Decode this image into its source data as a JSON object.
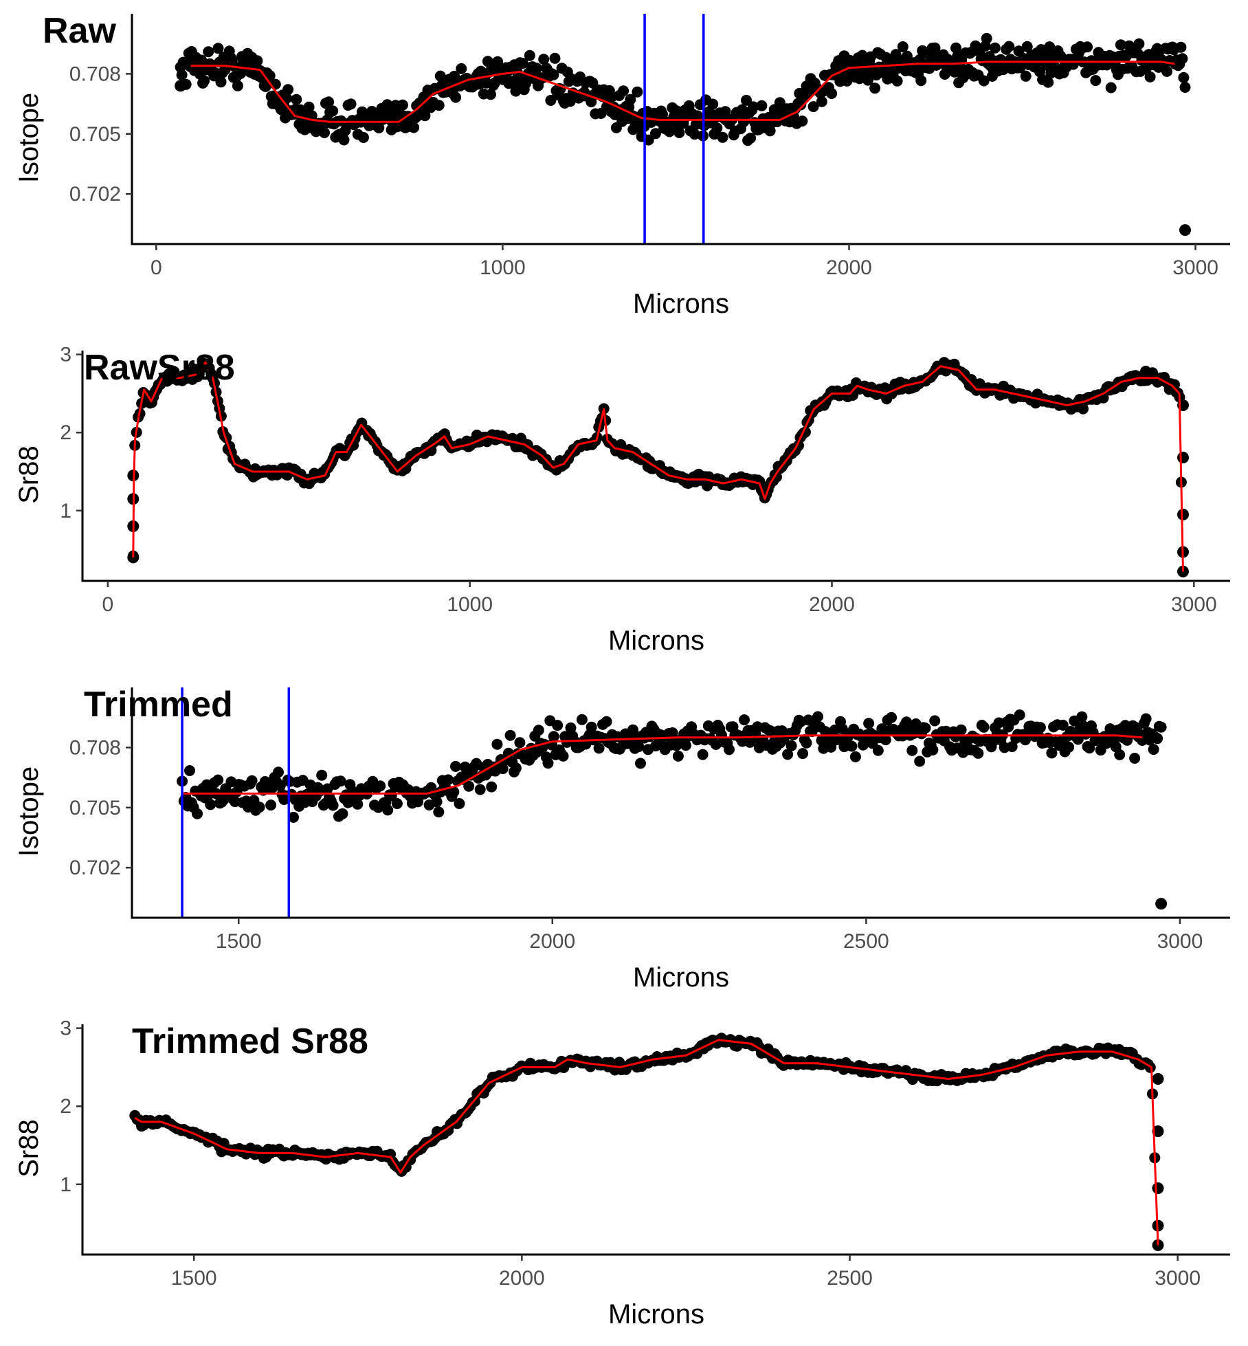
{
  "figure": {
    "background": "#ffffff",
    "point_color": "#000000",
    "fit_color": "#ff0000",
    "marker_color": "#0000ff"
  },
  "chart_data": [
    {
      "type": "scatter",
      "title": "Raw",
      "xlabel": "Microns",
      "ylabel": "Isotope",
      "xlim": [
        -70,
        3100
      ],
      "ylim": [
        0.6995,
        0.711
      ],
      "xticks": [
        0,
        1000,
        2000,
        3000
      ],
      "xtick_labels": [
        "0",
        "1000",
        "2000",
        "3000"
      ],
      "yticks": [
        0.702,
        0.705,
        0.708
      ],
      "ytick_labels": [
        "0.702",
        "0.705",
        "0.708"
      ],
      "grid": false,
      "legend": "none",
      "vlines": [
        1410,
        1580
      ],
      "noise_sd": 0.00045,
      "extra_points": [
        [
          70,
          0.7074
        ],
        [
          2970,
          0.7002
        ]
      ],
      "x_range": [
        70,
        2970
      ],
      "n_points": 720,
      "series": [
        {
          "kind": "loess fit",
          "x": [
            100,
            200,
            300,
            350,
            400,
            450,
            500,
            600,
            700,
            750,
            800,
            900,
            1000,
            1050,
            1100,
            1200,
            1300,
            1400,
            1450,
            1500,
            1600,
            1700,
            1800,
            1850,
            1900,
            1950,
            2000,
            2100,
            2200,
            2300,
            2400,
            2500,
            2600,
            2700,
            2800,
            2900,
            2940
          ],
          "y": [
            0.7084,
            0.7084,
            0.7082,
            0.707,
            0.7059,
            0.7057,
            0.7056,
            0.7056,
            0.7056,
            0.7062,
            0.707,
            0.7077,
            0.708,
            0.7081,
            0.7078,
            0.7072,
            0.7066,
            0.7058,
            0.7057,
            0.7057,
            0.7057,
            0.7057,
            0.7057,
            0.7061,
            0.707,
            0.7079,
            0.7083,
            0.7084,
            0.7085,
            0.7085,
            0.7086,
            0.7086,
            0.7086,
            0.7086,
            0.7086,
            0.7086,
            0.7085
          ]
        }
      ]
    },
    {
      "type": "scatter",
      "title": "RawSr88",
      "xlabel": "Microns",
      "ylabel": "Sr88",
      "xlim": [
        -70,
        3100
      ],
      "ylim": [
        0.1,
        3.05
      ],
      "xticks": [
        0,
        1000,
        2000,
        3000
      ],
      "xtick_labels": [
        "0",
        "1000",
        "2000",
        "3000"
      ],
      "yticks": [
        1,
        2,
        3
      ],
      "ytick_labels": [
        "1",
        "2",
        "3"
      ],
      "grid": false,
      "legend": "none",
      "vlines": [],
      "noise_sd": 0.03,
      "extra_points": [
        [
          70,
          0.4
        ],
        [
          70,
          0.8
        ],
        [
          70,
          1.15
        ],
        [
          70,
          1.45
        ],
        [
          2970,
          2.35
        ],
        [
          2970,
          1.68
        ],
        [
          2970,
          0.95
        ],
        [
          2970,
          0.47
        ],
        [
          2970,
          0.22
        ]
      ],
      "x_range": [
        70,
        2965
      ],
      "n_points": 620,
      "series": [
        {
          "kind": "line",
          "x": [
            70,
            72,
            75,
            85,
            100,
            120,
            150,
            200,
            250,
            270,
            290,
            320,
            350,
            400,
            450,
            500,
            550,
            600,
            630,
            660,
            700,
            750,
            800,
            850,
            900,
            930,
            950,
            1000,
            1050,
            1100,
            1150,
            1200,
            1230,
            1260,
            1300,
            1350,
            1370,
            1380,
            1400,
            1450,
            1500,
            1550,
            1600,
            1650,
            1700,
            1750,
            1800,
            1815,
            1830,
            1850,
            1900,
            1950,
            2000,
            2050,
            2070,
            2100,
            2150,
            2200,
            2250,
            2300,
            2350,
            2400,
            2450,
            2500,
            2550,
            2600,
            2650,
            2700,
            2750,
            2800,
            2850,
            2900,
            2940,
            2960,
            2970
          ],
          "y": [
            0.4,
            1.4,
            1.9,
            2.2,
            2.55,
            2.4,
            2.7,
            2.7,
            2.75,
            2.9,
            2.7,
            2.0,
            1.6,
            1.5,
            1.5,
            1.5,
            1.4,
            1.45,
            1.75,
            1.75,
            2.1,
            1.8,
            1.5,
            1.7,
            1.85,
            1.95,
            1.8,
            1.85,
            1.95,
            1.9,
            1.85,
            1.7,
            1.55,
            1.6,
            1.85,
            1.9,
            2.3,
            1.9,
            1.8,
            1.75,
            1.6,
            1.45,
            1.4,
            1.4,
            1.35,
            1.4,
            1.35,
            1.15,
            1.35,
            1.5,
            1.8,
            2.3,
            2.5,
            2.5,
            2.6,
            2.55,
            2.5,
            2.6,
            2.65,
            2.85,
            2.8,
            2.55,
            2.55,
            2.5,
            2.45,
            2.4,
            2.35,
            2.4,
            2.5,
            2.65,
            2.7,
            2.7,
            2.6,
            2.5,
            0.22
          ]
        }
      ]
    },
    {
      "type": "scatter",
      "title": "Trimmed",
      "xlabel": "Microns",
      "ylabel": "Isotope",
      "xlim": [
        1330,
        3080
      ],
      "ylim": [
        0.6995,
        0.711
      ],
      "xticks": [
        1500,
        2000,
        2500,
        3000
      ],
      "xtick_labels": [
        "1500",
        "2000",
        "2500",
        "3000"
      ],
      "yticks": [
        0.702,
        0.705,
        0.708
      ],
      "ytick_labels": [
        "0.702",
        "0.705",
        "0.708"
      ],
      "grid": false,
      "legend": "none",
      "vlines": [
        1410,
        1580
      ],
      "noise_sd": 0.00045,
      "extra_points": [
        [
          2970,
          0.7002
        ]
      ],
      "x_range": [
        1410,
        2970
      ],
      "n_points": 520,
      "series": [
        {
          "kind": "loess fit",
          "x": [
            1410,
            1500,
            1600,
            1700,
            1800,
            1850,
            1900,
            1950,
            2000,
            2100,
            2200,
            2300,
            2400,
            2500,
            2600,
            2700,
            2800,
            2900,
            2940
          ],
          "y": [
            0.7057,
            0.7057,
            0.7057,
            0.7057,
            0.7057,
            0.7061,
            0.707,
            0.7079,
            0.7083,
            0.7084,
            0.7085,
            0.7085,
            0.7086,
            0.7086,
            0.7086,
            0.7086,
            0.7086,
            0.7086,
            0.7085
          ]
        }
      ]
    },
    {
      "type": "scatter",
      "title": "Trimmed Sr88",
      "xlabel": "Microns",
      "ylabel": "Sr88",
      "xlim": [
        1330,
        3080
      ],
      "ylim": [
        0.1,
        3.05
      ],
      "xticks": [
        1500,
        2000,
        2500,
        3000
      ],
      "xtick_labels": [
        "1500",
        "2000",
        "2500",
        "3000"
      ],
      "yticks": [
        1,
        2,
        3
      ],
      "ytick_labels": [
        "1",
        "2",
        "3"
      ],
      "grid": false,
      "legend": "none",
      "vlines": [],
      "noise_sd": 0.025,
      "extra_points": [
        [
          2970,
          2.35
        ],
        [
          2970,
          1.68
        ],
        [
          2970,
          0.95
        ],
        [
          2970,
          0.47
        ],
        [
          2970,
          0.22
        ]
      ],
      "x_range": [
        1410,
        2965
      ],
      "n_points": 460,
      "series": [
        {
          "kind": "line",
          "x": [
            1410,
            1420,
            1450,
            1500,
            1550,
            1600,
            1650,
            1700,
            1750,
            1800,
            1815,
            1830,
            1850,
            1900,
            1950,
            2000,
            2050,
            2070,
            2100,
            2150,
            2200,
            2250,
            2300,
            2350,
            2400,
            2450,
            2500,
            2550,
            2600,
            2650,
            2700,
            2750,
            2800,
            2850,
            2900,
            2940,
            2960,
            2970
          ],
          "y": [
            1.85,
            1.8,
            1.8,
            1.65,
            1.45,
            1.4,
            1.4,
            1.35,
            1.4,
            1.35,
            1.15,
            1.35,
            1.5,
            1.8,
            2.3,
            2.5,
            2.5,
            2.6,
            2.55,
            2.5,
            2.6,
            2.65,
            2.85,
            2.8,
            2.55,
            2.55,
            2.5,
            2.45,
            2.4,
            2.35,
            2.4,
            2.5,
            2.65,
            2.7,
            2.7,
            2.6,
            2.5,
            0.22
          ]
        }
      ]
    }
  ]
}
